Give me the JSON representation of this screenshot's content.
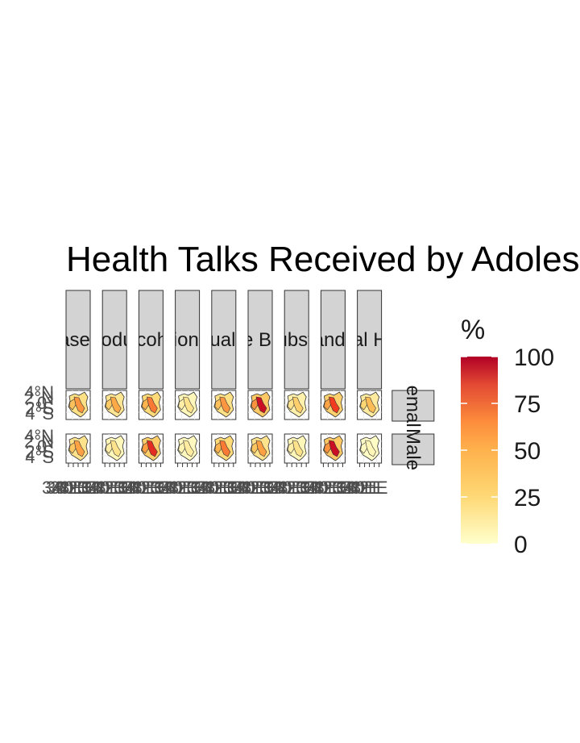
{
  "chart_data": {
    "type": "choropleth-facet",
    "title": "Health Talks Received by Adolescents",
    "facet_columns": [
      "Gender Based Violence",
      "Sexual Reproductive Health",
      "Alcohol",
      "Nutrition Talks",
      "Menstrual Health",
      "Positive Behavior",
      "Drug and Substance Abuse",
      "HIV and STIs",
      "Mental Health"
    ],
    "facet_rows": [
      "Female",
      "Male"
    ],
    "panel_fill_levels": [
      [
        55,
        45,
        65,
        15,
        55,
        95,
        25,
        80,
        35
      ],
      [
        50,
        15,
        85,
        10,
        65,
        50,
        15,
        95,
        5
      ]
    ],
    "y_tick_labels": [
      "4°N",
      "2°N",
      "0°",
      "2°S",
      "4°S"
    ],
    "x_tick_labels": [
      "34°E",
      "36°E",
      "38°E",
      "40°E",
      "42°E"
    ],
    "legend": {
      "title": "%",
      "breaks": [
        "100",
        "75",
        "50",
        "25",
        "0"
      ],
      "range": [
        0,
        100
      ],
      "colors": [
        "#ffffcc",
        "#fed976",
        "#feb24c",
        "#fd8d3c",
        "#f03b20",
        "#bd0026"
      ],
      "placement": "right"
    }
  }
}
